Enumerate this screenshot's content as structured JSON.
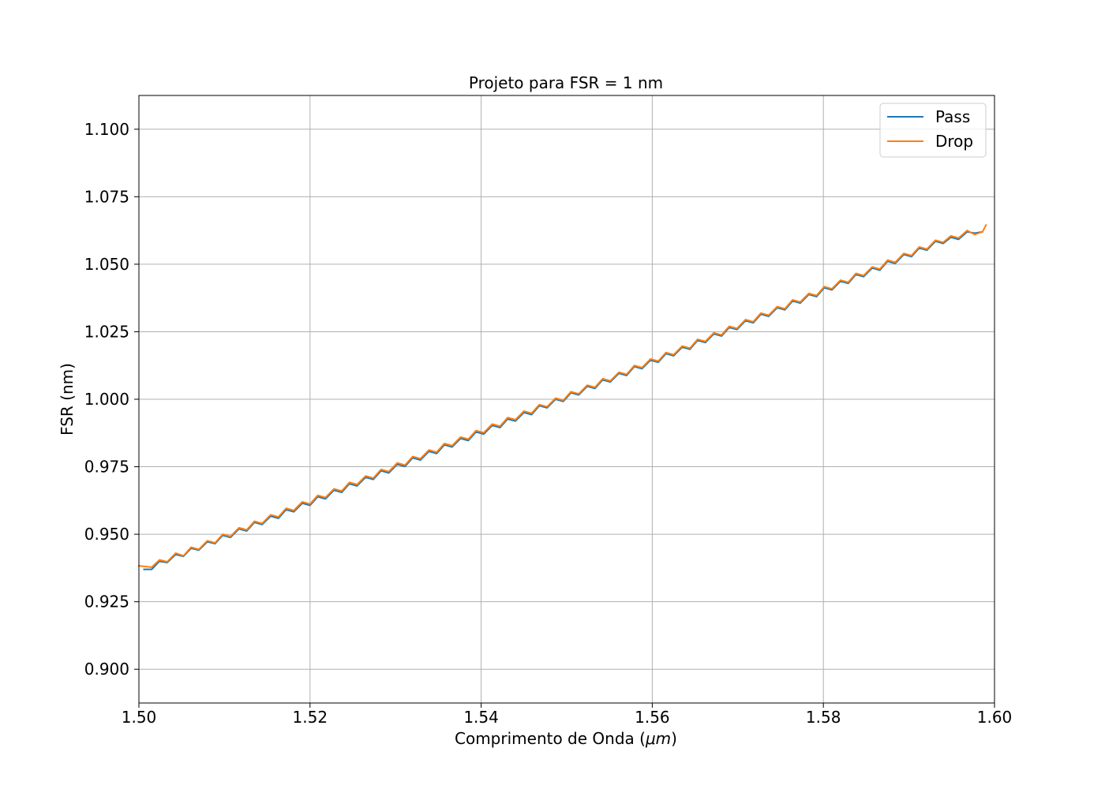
{
  "chart_data": {
    "type": "line",
    "title": "Projeto para FSR = 1 nm",
    "xlabel_main": "Comprimento de Onda (",
    "xlabel_math": "μm",
    "xlabel_tail": ")",
    "ylabel": "FSR (nm)",
    "xlim": [
      1.5,
      1.6
    ],
    "ylim": [
      0.8875,
      1.1125
    ],
    "xticks": [
      1.5,
      1.52,
      1.54,
      1.56,
      1.58,
      1.6
    ],
    "xtick_labels": [
      "1.50",
      "1.52",
      "1.54",
      "1.56",
      "1.58",
      "1.60"
    ],
    "yticks": [
      0.9,
      0.925,
      0.95,
      0.975,
      1.0,
      1.025,
      1.05,
      1.075,
      1.1
    ],
    "ytick_labels": [
      "0.900",
      "0.925",
      "0.950",
      "0.975",
      "1.000",
      "1.025",
      "1.050",
      "1.075",
      "1.100"
    ],
    "grid": true,
    "legend_position": "top-right",
    "series": [
      {
        "name": "Pass",
        "color": "#1f77b4",
        "x": [
          1.5006,
          1.5015,
          1.5024,
          1.5033,
          1.5043,
          1.5052,
          1.5061,
          1.507,
          1.508,
          1.5089,
          1.5098,
          1.5107,
          1.5117,
          1.5126,
          1.5135,
          1.5144,
          1.5154,
          1.5163,
          1.5172,
          1.5181,
          1.5191,
          1.52,
          1.5209,
          1.5218,
          1.5228,
          1.5237,
          1.5246,
          1.5255,
          1.5265,
          1.5274,
          1.5283,
          1.5292,
          1.5302,
          1.5311,
          1.532,
          1.5329,
          1.5339,
          1.5348,
          1.5357,
          1.5366,
          1.5376,
          1.5385,
          1.5394,
          1.5403,
          1.5413,
          1.5422,
          1.5431,
          1.544,
          1.545,
          1.5459,
          1.5468,
          1.5477,
          1.5487,
          1.5496,
          1.5505,
          1.5514,
          1.5524,
          1.5533,
          1.5542,
          1.5551,
          1.5561,
          1.557,
          1.5579,
          1.5588,
          1.5598,
          1.5607,
          1.5616,
          1.5625,
          1.5635,
          1.5644,
          1.5653,
          1.5662,
          1.5672,
          1.5681,
          1.569,
          1.5699,
          1.5709,
          1.5718,
          1.5727,
          1.5736,
          1.5746,
          1.5755,
          1.5764,
          1.5773,
          1.5783,
          1.5792,
          1.5801,
          1.581,
          1.582,
          1.5829,
          1.5838,
          1.5847,
          1.5857,
          1.5866,
          1.5875,
          1.5884,
          1.5894,
          1.5903,
          1.5912,
          1.5921,
          1.5931,
          1.594,
          1.5949,
          1.5958,
          1.5968,
          1.5977,
          1.5986
        ],
        "y": [
          0.937,
          0.937,
          0.94,
          0.9395,
          0.9425,
          0.9418,
          0.9448,
          0.9441,
          0.9472,
          0.9465,
          0.9496,
          0.9488,
          0.952,
          0.9512,
          0.9544,
          0.9536,
          0.9567,
          0.9559,
          0.9591,
          0.9583,
          0.9615,
          0.9607,
          0.9639,
          0.9631,
          0.9663,
          0.9655,
          0.9687,
          0.9679,
          0.9711,
          0.9703,
          0.9735,
          0.9727,
          0.9759,
          0.9751,
          0.9783,
          0.9775,
          0.9807,
          0.9799,
          0.9831,
          0.9823,
          0.9855,
          0.9847,
          0.9879,
          0.9871,
          0.9903,
          0.9895,
          0.9927,
          0.9919,
          0.9951,
          0.9943,
          0.9976,
          0.9968,
          1.0,
          0.9992,
          1.0024,
          1.0016,
          1.0048,
          1.004,
          1.0072,
          1.0064,
          1.0096,
          1.0088,
          1.0121,
          1.0113,
          1.0145,
          1.0137,
          1.0169,
          1.0161,
          1.0193,
          1.0185,
          1.0218,
          1.021,
          1.0242,
          1.0234,
          1.0266,
          1.0258,
          1.0291,
          1.0283,
          1.0315,
          1.0307,
          1.0339,
          1.0331,
          1.0364,
          1.0356,
          1.0388,
          1.038,
          1.0413,
          1.0405,
          1.0437,
          1.0429,
          1.0462,
          1.0454,
          1.0486,
          1.0478,
          1.0511,
          1.0503,
          1.0536,
          1.0528,
          1.056,
          1.0552,
          1.0585,
          1.0577,
          1.06,
          1.0592,
          1.062,
          1.0615,
          1.062
        ]
      },
      {
        "name": "Drop",
        "color": "#ff7f0e",
        "x": [
          1.5,
          1.5015,
          1.5024,
          1.5033,
          1.5043,
          1.5052,
          1.5061,
          1.507,
          1.508,
          1.5089,
          1.5098,
          1.5107,
          1.5117,
          1.5126,
          1.5135,
          1.5144,
          1.5154,
          1.5163,
          1.5172,
          1.5181,
          1.5191,
          1.52,
          1.5209,
          1.5218,
          1.5228,
          1.5237,
          1.5246,
          1.5255,
          1.5265,
          1.5274,
          1.5283,
          1.5292,
          1.5302,
          1.5311,
          1.532,
          1.5329,
          1.5339,
          1.5348,
          1.5357,
          1.5366,
          1.5376,
          1.5385,
          1.5394,
          1.5403,
          1.5413,
          1.5422,
          1.5431,
          1.544,
          1.545,
          1.5459,
          1.5468,
          1.5477,
          1.5487,
          1.5496,
          1.5505,
          1.5514,
          1.5524,
          1.5533,
          1.5542,
          1.5551,
          1.5561,
          1.557,
          1.5579,
          1.5588,
          1.5598,
          1.5607,
          1.5616,
          1.5625,
          1.5635,
          1.5644,
          1.5653,
          1.5662,
          1.5672,
          1.5681,
          1.569,
          1.5699,
          1.5709,
          1.5718,
          1.5727,
          1.5736,
          1.5746,
          1.5755,
          1.5764,
          1.5773,
          1.5783,
          1.5792,
          1.5801,
          1.581,
          1.582,
          1.5829,
          1.5838,
          1.5847,
          1.5857,
          1.5866,
          1.5875,
          1.5884,
          1.5894,
          1.5903,
          1.5912,
          1.5921,
          1.5931,
          1.594,
          1.5949,
          1.5958,
          1.5968,
          1.5977,
          1.5986,
          1.599
        ],
        "y": [
          0.9383,
          0.9378,
          0.9405,
          0.9398,
          0.943,
          0.942,
          0.9452,
          0.9444,
          0.9476,
          0.9468,
          0.95,
          0.9492,
          0.9524,
          0.9516,
          0.9548,
          0.954,
          0.9572,
          0.9564,
          0.9596,
          0.9588,
          0.962,
          0.9612,
          0.9644,
          0.9636,
          0.9668,
          0.966,
          0.9692,
          0.9684,
          0.9716,
          0.9708,
          0.974,
          0.9732,
          0.9764,
          0.9756,
          0.9788,
          0.978,
          0.9812,
          0.9804,
          0.9836,
          0.9828,
          0.986,
          0.9852,
          0.9884,
          0.9876,
          0.9908,
          0.99,
          0.9932,
          0.9924,
          0.9956,
          0.9948,
          0.998,
          0.9972,
          1.0004,
          0.9996,
          1.0028,
          1.002,
          1.0052,
          1.0044,
          1.0076,
          1.0068,
          1.01,
          1.0092,
          1.0125,
          1.0117,
          1.0149,
          1.0141,
          1.0173,
          1.0165,
          1.0197,
          1.0189,
          1.0222,
          1.0214,
          1.0246,
          1.0238,
          1.027,
          1.0262,
          1.0295,
          1.0287,
          1.0319,
          1.0311,
          1.0343,
          1.0335,
          1.0368,
          1.036,
          1.0392,
          1.0384,
          1.0417,
          1.0409,
          1.0441,
          1.0433,
          1.0466,
          1.0458,
          1.049,
          1.0482,
          1.0515,
          1.0507,
          1.054,
          1.0532,
          1.0564,
          1.0556,
          1.0589,
          1.0581,
          1.0605,
          1.0597,
          1.0625,
          1.061,
          1.062,
          1.0645
        ]
      }
    ]
  }
}
